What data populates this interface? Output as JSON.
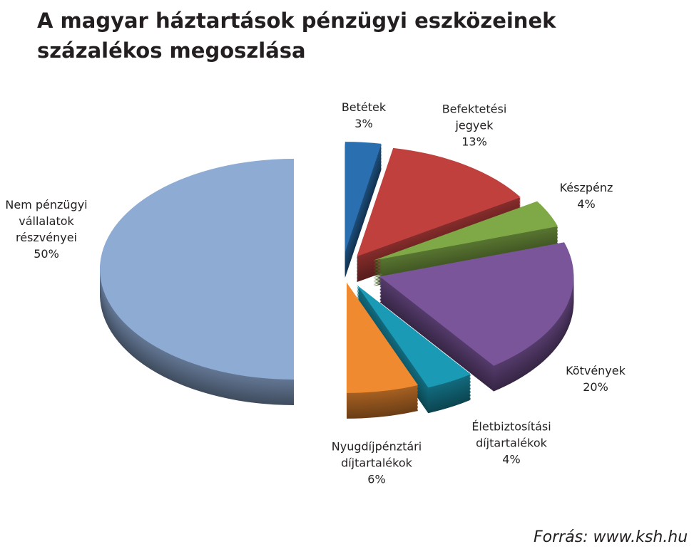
{
  "chart_data": {
    "type": "pie",
    "title": "A magyar háztartások pénzügyi eszközeinek százalékos megoszlása",
    "categories": [
      "Betétek",
      "Befektetési jegyek",
      "Készpénz",
      "Kötvények",
      "Életbiztosítási díjtartalékok",
      "Nyugdíjpénztári díjtartalékok",
      "Nem pénzügyi vállalatok részvényei"
    ],
    "values": [
      3,
      13,
      4,
      20,
      4,
      6,
      50
    ],
    "value_labels": [
      "3%",
      "13%",
      "4%",
      "20%",
      "4%",
      "6%",
      "50%"
    ],
    "colors": [
      "#2a6fb0",
      "#c0403e",
      "#7fa846",
      "#7a559a",
      "#1a9ab5",
      "#ef8a30",
      "#8eabd4"
    ],
    "source": "Forrás: www.ksh.hu"
  }
}
